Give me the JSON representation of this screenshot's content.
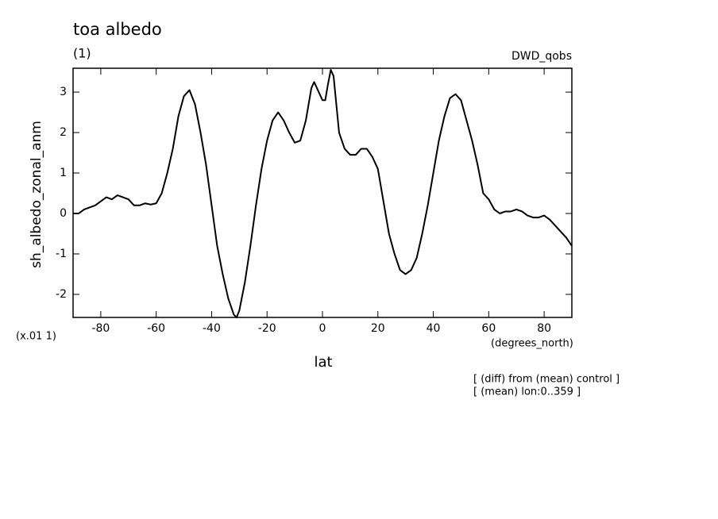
{
  "chart_data": {
    "type": "line",
    "title": "toa albedo",
    "subtitle": "(1)",
    "dataset_label": "DWD_qobs",
    "y_label": "sh_albedo_zonal_anm",
    "y_scale_note": "(x.01 1)",
    "x_unit_label": "(degrees_north)",
    "x_label": "lat",
    "annotations": [
      "[ (diff) from (mean) control ]",
      "[ (mean) lon:0..359 ]"
    ],
    "xlim": [
      -90,
      90
    ],
    "ylim": [
      -2.57,
      3.59
    ],
    "xticks": [
      -80,
      -60,
      -40,
      -20,
      0,
      20,
      40,
      60,
      80
    ],
    "yticks": [
      -2,
      -1,
      0,
      1,
      2,
      3
    ],
    "color": "#000000",
    "x": [
      -90,
      -88,
      -86,
      -84,
      -82,
      -80,
      -78,
      -76,
      -74,
      -72,
      -70,
      -68,
      -66,
      -64,
      -62,
      -60,
      -58,
      -56,
      -54,
      -52,
      -50,
      -48,
      -46,
      -44,
      -42,
      -40,
      -38,
      -36,
      -34,
      -32,
      -31,
      -30,
      -28,
      -26,
      -24,
      -22,
      -20,
      -18,
      -16,
      -14,
      -12,
      -10,
      -8,
      -6,
      -4,
      -3,
      -2,
      0,
      1,
      2,
      3,
      4,
      6,
      8,
      10,
      12,
      14,
      16,
      18,
      20,
      22,
      24,
      26,
      28,
      30,
      32,
      34,
      36,
      38,
      40,
      42,
      44,
      46,
      48,
      50,
      52,
      54,
      56,
      58,
      60,
      62,
      64,
      66,
      68,
      70,
      72,
      74,
      76,
      78,
      80,
      82,
      84,
      86,
      88,
      90
    ],
    "values": [
      0.0,
      0.0,
      0.1,
      0.15,
      0.2,
      0.3,
      0.4,
      0.35,
      0.45,
      0.4,
      0.35,
      0.2,
      0.2,
      0.25,
      0.22,
      0.25,
      0.5,
      1.0,
      1.6,
      2.4,
      2.9,
      3.05,
      2.7,
      2.0,
      1.2,
      0.2,
      -0.8,
      -1.5,
      -2.1,
      -2.5,
      -2.57,
      -2.4,
      -1.7,
      -0.8,
      0.2,
      1.1,
      1.8,
      2.3,
      2.5,
      2.3,
      2.0,
      1.75,
      1.8,
      2.3,
      3.1,
      3.25,
      3.1,
      2.8,
      2.8,
      3.2,
      3.55,
      3.4,
      2.0,
      1.6,
      1.45,
      1.45,
      1.6,
      1.6,
      1.4,
      1.1,
      0.3,
      -0.5,
      -1.0,
      -1.4,
      -1.5,
      -1.4,
      -1.1,
      -0.5,
      0.2,
      1.0,
      1.8,
      2.4,
      2.85,
      2.95,
      2.8,
      2.3,
      1.8,
      1.2,
      0.5,
      0.35,
      0.1,
      0.0,
      0.05,
      0.05,
      0.1,
      0.05,
      -0.05,
      -0.1,
      -0.1,
      -0.05,
      -0.15,
      -0.3,
      -0.45,
      -0.6,
      -0.8
    ]
  }
}
